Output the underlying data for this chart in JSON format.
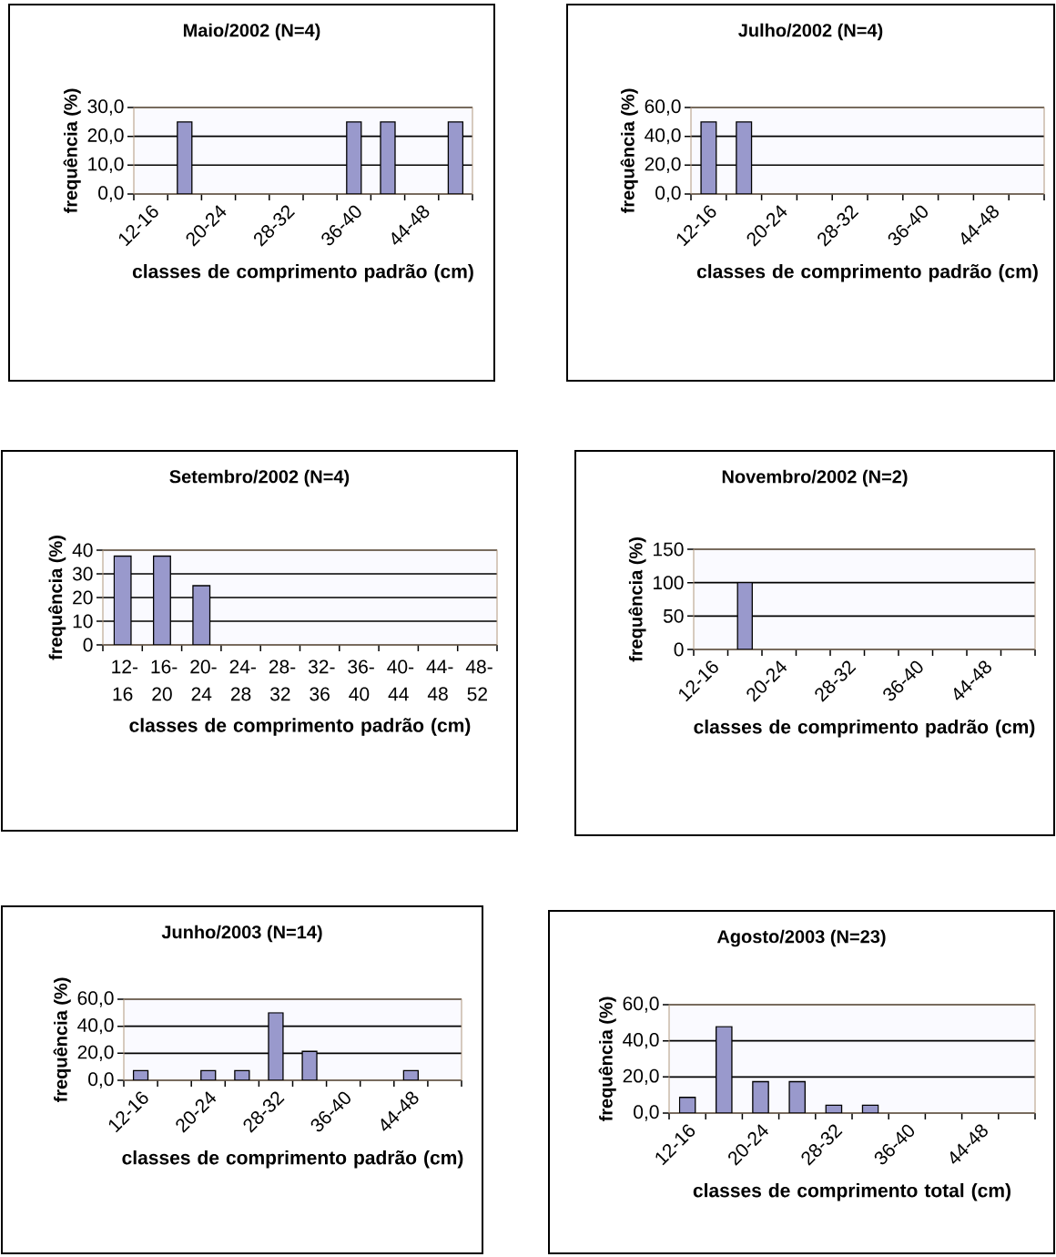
{
  "chart_data": [
    {
      "type": "bar",
      "title": "Maio/2002 (N=4)",
      "xlabel": "classes de comprimento padrão (cm)",
      "ylabel": "frequência (%)",
      "categories": [
        "12-16",
        null,
        "20-24",
        null,
        "28-32",
        null,
        "36-40",
        null,
        "44-48",
        null
      ],
      "values": [
        null,
        25,
        null,
        null,
        null,
        null,
        25,
        25,
        null,
        25
      ],
      "color": "#9999cc",
      "ylim": [
        0,
        30
      ],
      "yticks": [
        {
          "value": 0,
          "label": "0,0"
        },
        {
          "value": 10,
          "label": "10,0"
        },
        {
          "value": 20,
          "label": "20,0"
        },
        {
          "value": 30,
          "label": "30,0"
        }
      ],
      "grid": "y"
    },
    {
      "type": "bar",
      "title": "Julho/2002 (N=4)",
      "xlabel": "classes de comprimento padrão (cm)",
      "ylabel": "frequência (%)",
      "categories": [
        "12-16",
        null,
        "20-24",
        null,
        "28-32",
        null,
        "36-40",
        null,
        "44-48",
        null
      ],
      "values": [
        50,
        50,
        null,
        null,
        null,
        null,
        null,
        null,
        null,
        null
      ],
      "color": "#9999cc",
      "ylim": [
        0,
        60
      ],
      "yticks": [
        {
          "value": 0,
          "label": "0,0"
        },
        {
          "value": 20,
          "label": "20,0"
        },
        {
          "value": 40,
          "label": "40,0"
        },
        {
          "value": 60,
          "label": "60,0"
        }
      ],
      "grid": "y"
    },
    {
      "type": "bar",
      "title": "Setembro/2002 (N=4)",
      "xlabel": "classes de comprimento padrão (cm)",
      "ylabel": "frequência (%)",
      "categories": [
        "12-16",
        "16-20",
        "20-24",
        "24-28",
        "28-32",
        "32-36",
        "36-40",
        "40-44",
        "44-48",
        "48-52"
      ],
      "values": [
        37.5,
        37.5,
        25,
        null,
        null,
        null,
        null,
        null,
        null,
        null
      ],
      "color": "#9999cc",
      "ylim": [
        0,
        40
      ],
      "yticks": [
        0,
        10,
        20,
        30,
        40
      ],
      "grid": "y"
    },
    {
      "type": "bar",
      "title": "Novembro/2002 (N=2)",
      "xlabel": "classes de comprimento padrão (cm)",
      "ylabel": "frequência (%)",
      "categories": [
        "12-16",
        null,
        "20-24",
        null,
        "28-32",
        null,
        "36-40",
        null,
        "44-48",
        null
      ],
      "values": [
        null,
        100,
        null,
        null,
        null,
        null,
        null,
        null,
        null,
        null
      ],
      "color": "#9999cc",
      "ylim": [
        0,
        150
      ],
      "yticks": [
        0,
        50,
        100,
        150
      ],
      "grid": "y"
    },
    {
      "type": "bar",
      "title": "Junho/2003 (N=14)",
      "xlabel": "classes de comprimento padrão (cm)",
      "ylabel": "frequência (%)",
      "categories": [
        "12-16",
        null,
        "20-24",
        null,
        "28-32",
        null,
        "36-40",
        null,
        "44-48",
        null
      ],
      "values": [
        7.1,
        null,
        7.1,
        7.1,
        50,
        21.4,
        null,
        null,
        7.1,
        null
      ],
      "color": "#9999cc",
      "ylim": [
        0,
        60
      ],
      "yticks": [
        {
          "value": 0,
          "label": "0,0"
        },
        {
          "value": 20,
          "label": "20,0"
        },
        {
          "value": 40,
          "label": "40,0"
        },
        {
          "value": 60,
          "label": "60,0"
        }
      ],
      "grid": "y"
    },
    {
      "type": "bar",
      "title": "Agosto/2003 (N=23)",
      "xlabel": "classes de comprimento total (cm)",
      "ylabel": "frequência (%)",
      "categories": [
        "12-16",
        null,
        "20-24",
        null,
        "28-32",
        null,
        "36-40",
        null,
        "44-48",
        null
      ],
      "values": [
        8.7,
        47.8,
        17.4,
        17.4,
        4.3,
        4.3,
        null,
        null,
        null,
        null
      ],
      "color": "#9999cc",
      "ylim": [
        0,
        60
      ],
      "yticks": [
        {
          "value": 0,
          "label": "0,0"
        },
        {
          "value": 20,
          "label": "20,0"
        },
        {
          "value": 40,
          "label": "40,0"
        },
        {
          "value": 60,
          "label": "60,0"
        }
      ],
      "grid": "y"
    }
  ]
}
